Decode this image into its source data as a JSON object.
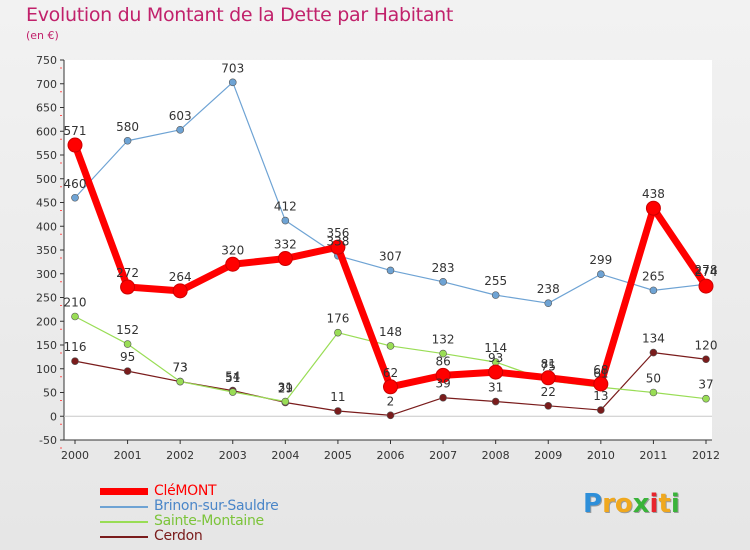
{
  "title": "Evolution du Montant de la Dette par Habitant",
  "subtitle": "(en €)",
  "logo": {
    "letters": [
      {
        "ch": "P",
        "color": "#2e8fd9"
      },
      {
        "ch": "r",
        "color": "#f0a81e"
      },
      {
        "ch": "o",
        "color": "#f0a81e"
      },
      {
        "ch": "x",
        "color": "#3ab33a"
      },
      {
        "ch": "i",
        "color": "#e8242c"
      },
      {
        "ch": "t",
        "color": "#f0a81e"
      },
      {
        "ch": "i",
        "color": "#3ab33a"
      }
    ]
  },
  "chart_data": {
    "type": "line",
    "title": "Evolution du Montant de la Dette par Habitant",
    "subtitle": "(en €)",
    "xlabel": "",
    "ylabel": "",
    "ylim": [
      -50,
      750
    ],
    "yticks": [
      -50,
      0,
      50,
      100,
      150,
      200,
      250,
      300,
      350,
      400,
      450,
      500,
      550,
      600,
      650,
      700,
      750
    ],
    "grid": false,
    "legend_position": "bottom-left",
    "x": [
      "2000",
      "2001",
      "2002",
      "2003",
      "2004",
      "2005",
      "2006",
      "2007",
      "2008",
      "2009",
      "2010",
      "2011",
      "2012"
    ],
    "series": [
      {
        "name": "CléMONT",
        "color": "#ff0000",
        "width": 7,
        "marker": 7,
        "values": [
          571,
          272,
          264,
          320,
          332,
          356,
          62,
          86,
          93,
          81,
          68,
          438,
          274
        ],
        "labels": [
          "571",
          "272",
          "264",
          "320",
          "332",
          "356",
          "62",
          "86",
          "93",
          "81",
          "68",
          "438",
          "274"
        ]
      },
      {
        "name": "Brinon-sur-Sauldre",
        "color": "#6ea3d4",
        "width": 1.2,
        "marker": 3.5,
        "values": [
          460,
          580,
          603,
          703,
          412,
          338,
          307,
          283,
          255,
          238,
          299,
          265,
          278
        ],
        "labels": [
          "460",
          "580",
          "603",
          "703",
          "412",
          "338",
          "307",
          "283",
          "255",
          "238",
          "299",
          "265",
          "278"
        ]
      },
      {
        "name": "Sainte-Montaine",
        "color": "#99dd55",
        "width": 1.2,
        "marker": 3.5,
        "values": [
          210,
          152,
          73,
          51,
          31,
          176,
          148,
          132,
          114,
          75,
          61,
          50,
          37
        ],
        "labels": [
          "210",
          "152",
          "73",
          "51",
          "31",
          "176",
          "148",
          "132",
          "114",
          "75",
          "61",
          "50",
          "37"
        ]
      },
      {
        "name": "Cerdon",
        "color": "#7a1c1c",
        "width": 1.2,
        "marker": 3.5,
        "values": [
          116,
          95,
          73,
          54,
          29,
          11,
          2,
          39,
          31,
          22,
          13,
          134,
          120
        ],
        "labels": [
          "116",
          "95",
          "73",
          "54",
          "29",
          "11",
          "2",
          "39",
          "31",
          "22",
          "13",
          "134",
          "120"
        ]
      }
    ]
  }
}
